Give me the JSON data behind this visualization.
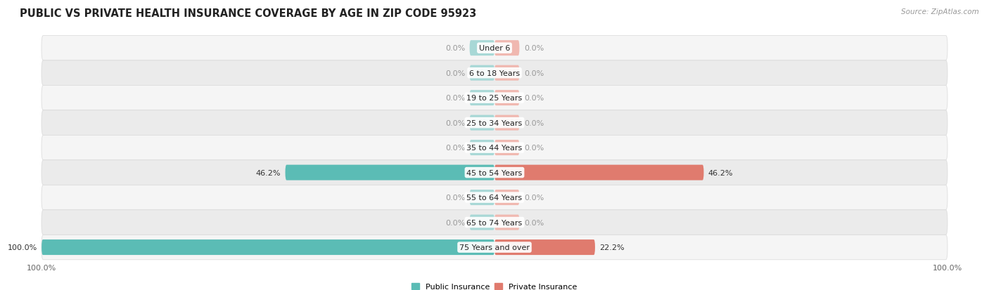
{
  "title": "PUBLIC VS PRIVATE HEALTH INSURANCE COVERAGE BY AGE IN ZIP CODE 95923",
  "source": "Source: ZipAtlas.com",
  "categories": [
    "Under 6",
    "6 to 18 Years",
    "19 to 25 Years",
    "25 to 34 Years",
    "35 to 44 Years",
    "45 to 54 Years",
    "55 to 64 Years",
    "65 to 74 Years",
    "75 Years and over"
  ],
  "public_values": [
    0.0,
    0.0,
    0.0,
    0.0,
    0.0,
    46.2,
    0.0,
    0.0,
    100.0
  ],
  "private_values": [
    0.0,
    0.0,
    0.0,
    0.0,
    0.0,
    46.2,
    0.0,
    0.0,
    22.2
  ],
  "public_color": "#5bbcb5",
  "private_color": "#e07b6e",
  "public_color_faint": "#a8d8d6",
  "private_color_faint": "#f0b8b0",
  "row_bg_color_light": "#f5f5f5",
  "row_bg_color_dark": "#ebebeb",
  "row_border_color": "#d8d8d8",
  "xlim_left": -100,
  "xlim_right": 100,
  "legend_labels": [
    "Public Insurance",
    "Private Insurance"
  ],
  "title_fontsize": 10.5,
  "label_fontsize": 8.0,
  "tick_fontsize": 8.0,
  "bar_height": 0.62,
  "min_bar_display": 5.5,
  "max_scale": 100.0
}
